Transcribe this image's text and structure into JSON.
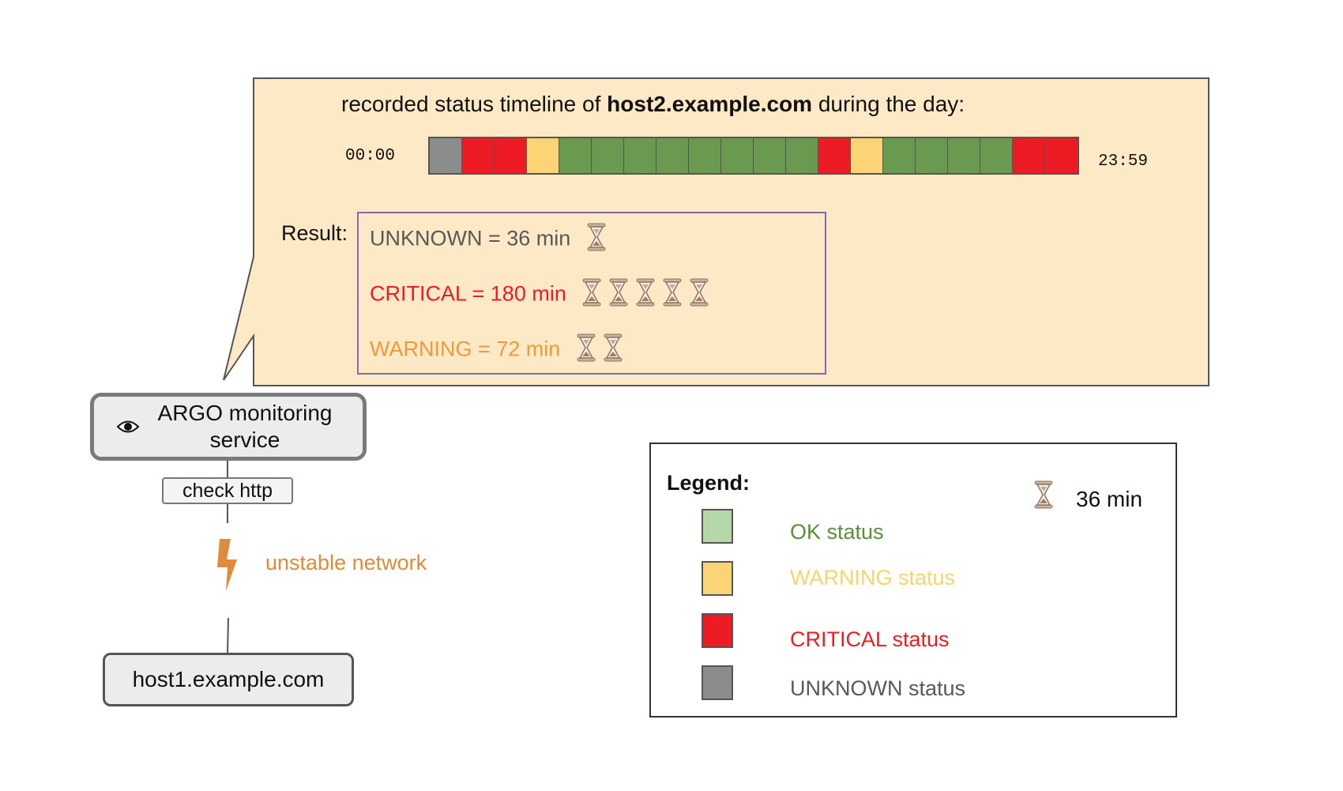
{
  "colors": {
    "ok": "#6a9a4f",
    "ok_legend": "#b6d7a8",
    "warning": "#fbd475",
    "critical": "#ed1c24",
    "unknown": "#8c8c8c",
    "bubble_bg": "#fde9c6",
    "warning_text": "#ef9a3a",
    "ok_text": "#5b8f3c",
    "unknown_text": "#595959",
    "legend_warning_text": "#f7d46c"
  },
  "bubble": {
    "title_prefix": "recorded status timeline of",
    "title_host": "host2.example.com",
    "title_suffix": "during the day:",
    "time_start": "00:00",
    "time_end": "23:59",
    "timeline": [
      "unknown",
      "critical",
      "critical",
      "warning",
      "ok",
      "ok",
      "ok",
      "ok",
      "ok",
      "ok",
      "ok",
      "ok",
      "critical",
      "warning",
      "ok",
      "ok",
      "ok",
      "ok",
      "critical",
      "critical"
    ]
  },
  "result": {
    "label": "Result:",
    "lines": [
      {
        "text": "UNKNOWN = 36 min",
        "status": "unknown",
        "glasses": 1
      },
      {
        "text": "CRITICAL =  180 min",
        "status": "critical",
        "glasses": 5
      },
      {
        "text": "WARNING = 72 min",
        "status": "warning",
        "glasses": 2
      }
    ]
  },
  "nodes": {
    "argo": "ARGO monitoring service",
    "check": "check http",
    "network": "unstable network",
    "host1": "host1.example.com"
  },
  "legend": {
    "title": "Legend:",
    "glass_label": "36 min",
    "items": [
      {
        "label": "OK status",
        "status": "ok"
      },
      {
        "label": "WARNING status",
        "status": "warning"
      },
      {
        "label": "CRITICAL status",
        "status": "critical"
      },
      {
        "label": "UNKNOWN status",
        "status": "unknown"
      }
    ]
  }
}
